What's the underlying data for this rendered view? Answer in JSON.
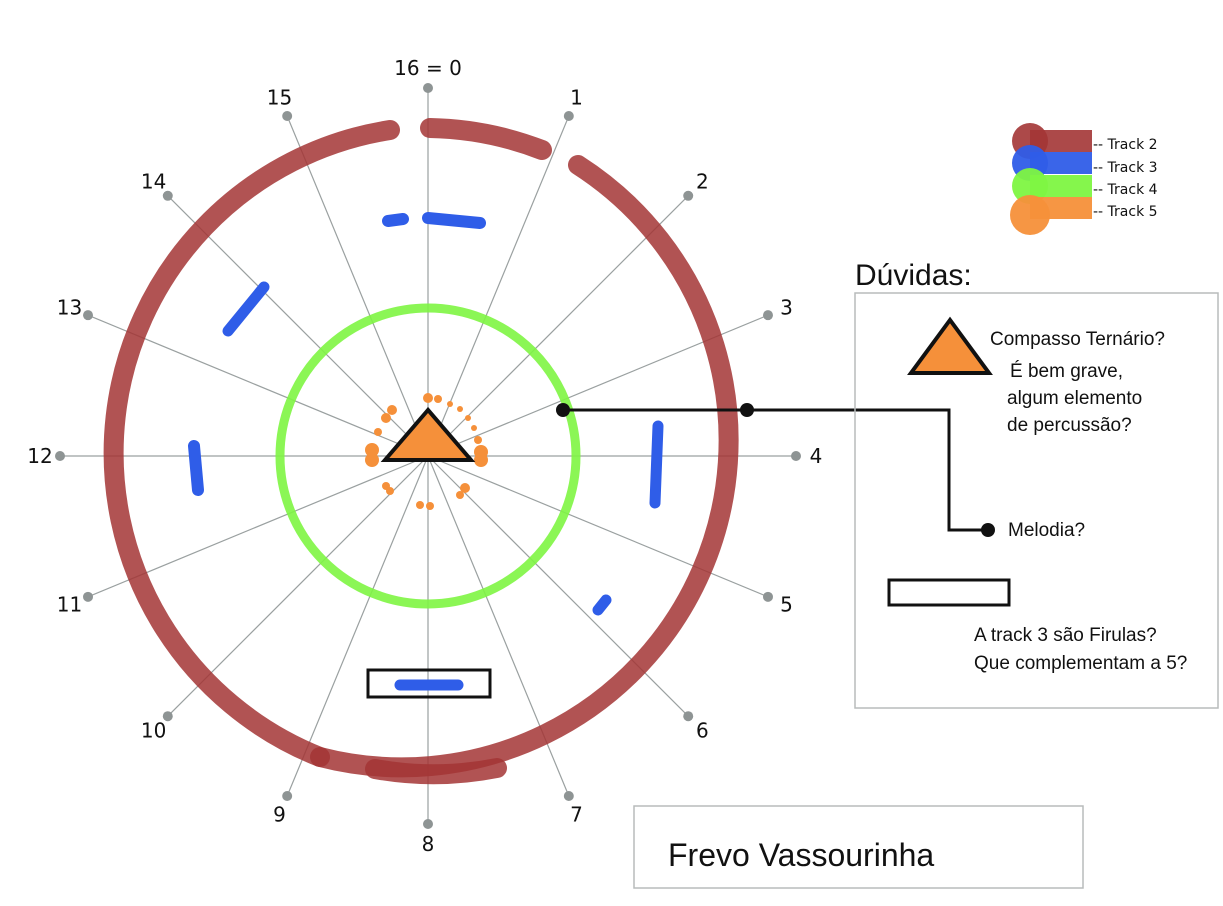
{
  "spokes": [
    "16 = 0",
    "1",
    "2",
    "3",
    "4",
    "5",
    "6",
    "7",
    "8",
    "9",
    "10",
    "11",
    "12",
    "13",
    "14",
    "15"
  ],
  "legend": [
    {
      "label": "-- Track 2",
      "color": "#a33535"
    },
    {
      "label": "-- Track 3",
      "color": "#2f5de8"
    },
    {
      "label": "-- Track 4",
      "color": "#7ef542"
    },
    {
      "label": "-- Track 5",
      "color": "#f5903a"
    }
  ],
  "doubts": {
    "title": "Dúvidas:",
    "compasso": "Compasso Ternário?",
    "grave_lines": [
      "É bem grave,",
      "algum elemento",
      "de percussão?"
    ],
    "melodia": "Melodia?",
    "firulas_lines": [
      "A track 3 são Firulas?",
      "Que complementam a 5?"
    ]
  },
  "title": "Frevo Vassourinha"
}
